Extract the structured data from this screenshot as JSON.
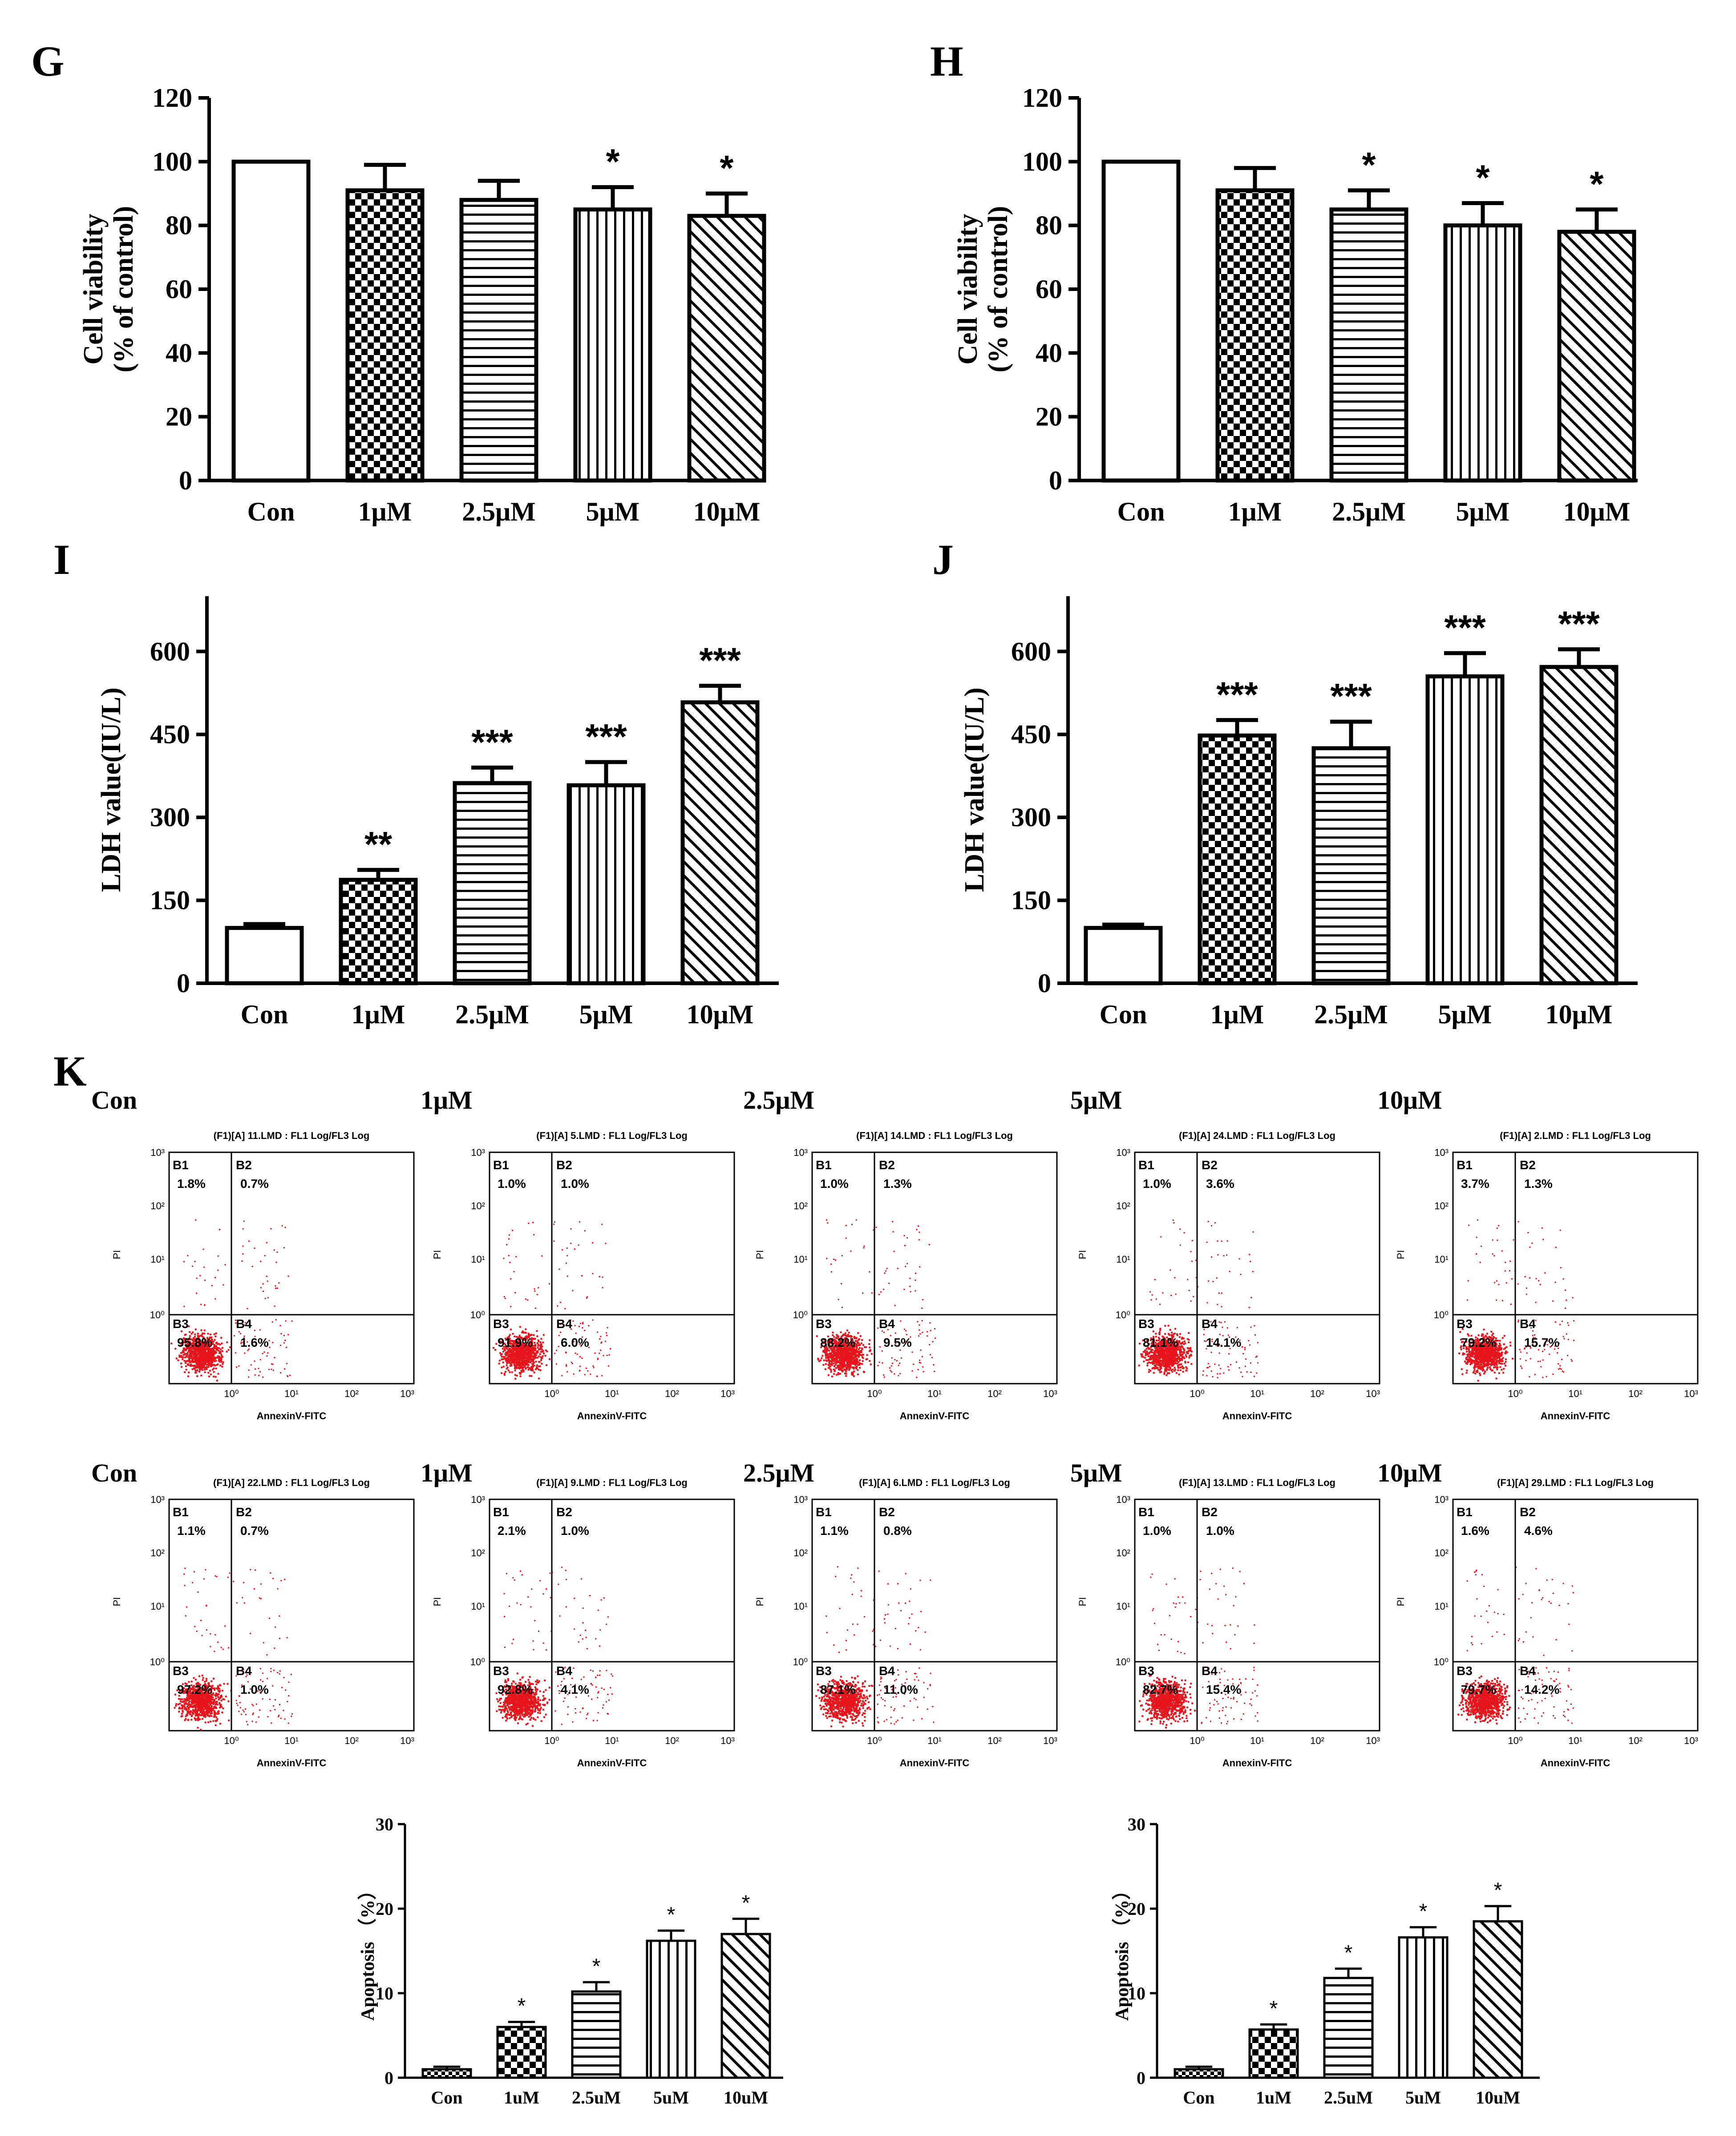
{
  "figure": {
    "panels": {
      "G": "G",
      "H": "H",
      "I": "I",
      "J": "J",
      "K": "K"
    }
  },
  "chart_data": [
    {
      "id": "G",
      "type": "bar",
      "letter": "G",
      "categories": [
        "Con",
        "1μM",
        "2.5μM",
        "5μM",
        "10μM"
      ],
      "values": [
        100,
        91,
        88,
        85,
        83
      ],
      "errors": [
        0,
        8,
        6,
        7,
        7
      ],
      "significance": [
        "",
        "",
        "",
        "*",
        "*"
      ],
      "ylabel_line1": "Cell viability",
      "ylabel_line2": "(% of control)",
      "ylim": [
        0,
        120
      ],
      "yticks": [
        "0",
        "20",
        "40",
        "60",
        "80",
        "100",
        "120"
      ],
      "patterns": [
        "white",
        "check",
        "hlines",
        "vlines",
        "diag"
      ]
    },
    {
      "id": "H",
      "type": "bar",
      "letter": "H",
      "categories": [
        "Con",
        "1μM",
        "2.5μM",
        "5μM",
        "10μM"
      ],
      "values": [
        100,
        91,
        85,
        80,
        78
      ],
      "errors": [
        0,
        7,
        6,
        7,
        7
      ],
      "significance": [
        "",
        "",
        "*",
        "*",
        "*"
      ],
      "ylabel_line1": "Cell viability",
      "ylabel_line2": "(% of control)",
      "ylim": [
        0,
        120
      ],
      "yticks": [
        "0",
        "20",
        "40",
        "60",
        "80",
        "100",
        "120"
      ],
      "patterns": [
        "white",
        "check",
        "hlines",
        "vlines",
        "diag"
      ]
    },
    {
      "id": "I",
      "type": "bar",
      "letter": "I",
      "categories": [
        "Con",
        "1μM",
        "2.5μM",
        "5μM",
        "10μM"
      ],
      "values": [
        100,
        187,
        362,
        358,
        508
      ],
      "errors": [
        7,
        18,
        28,
        42,
        30
      ],
      "significance": [
        "",
        "**",
        "***",
        "***",
        "***"
      ],
      "ylabel_line1": "LDH value(IU/L)",
      "ylabel_line2": "",
      "ylim": [
        0,
        700
      ],
      "yticks": [
        "0",
        "150",
        "300",
        "450",
        "600"
      ],
      "patterns": [
        "white",
        "check",
        "hlines",
        "vlines",
        "diag"
      ]
    },
    {
      "id": "J",
      "type": "bar",
      "letter": "J",
      "categories": [
        "Con",
        "1μM",
        "2.5μM",
        "5μM",
        "10μM"
      ],
      "values": [
        100,
        448,
        425,
        555,
        572
      ],
      "errors": [
        6,
        28,
        48,
        42,
        32
      ],
      "significance": [
        "",
        "***",
        "***",
        "***",
        "***"
      ],
      "ylabel_line1": "LDH value(IU/L)",
      "ylabel_line2": "",
      "ylim": [
        0,
        700
      ],
      "yticks": [
        "0",
        "150",
        "300",
        "450",
        "600"
      ],
      "patterns": [
        "white",
        "check",
        "hlines",
        "vlines",
        "diag"
      ]
    },
    {
      "id": "K1",
      "type": "bar",
      "categories": [
        "Con",
        "1uM",
        "2.5uM",
        "5uM",
        "10uM"
      ],
      "values": [
        1.0,
        6.0,
        10.2,
        16.2,
        17.0
      ],
      "errors": [
        0.3,
        0.6,
        1.1,
        1.2,
        1.8
      ],
      "significance": [
        "",
        "*",
        "*",
        "*",
        "*"
      ],
      "ylabel": "Apoptosis （%）",
      "ylim": [
        0,
        30
      ],
      "yticks": [
        "0",
        "10",
        "20",
        "30"
      ],
      "patterns": [
        "smallcheck",
        "check",
        "hlines",
        "vlines",
        "diag"
      ]
    },
    {
      "id": "K2",
      "type": "bar",
      "categories": [
        "Con",
        "1uM",
        "2.5uM",
        "5uM",
        "10uM"
      ],
      "values": [
        1.0,
        5.7,
        11.8,
        16.6,
        18.5
      ],
      "errors": [
        0.3,
        0.6,
        1.1,
        1.2,
        1.8
      ],
      "significance": [
        "",
        "*",
        "*",
        "*",
        "*"
      ],
      "ylabel": "Apoptosis （%）",
      "ylim": [
        0,
        30
      ],
      "yticks": [
        "0",
        "10",
        "20",
        "30"
      ],
      "patterns": [
        "smallcheck",
        "check",
        "hlines",
        "vlines",
        "diag"
      ]
    }
  ],
  "flow": {
    "xlabel": "AnnexinV-FITC",
    "ylabel": "PI",
    "quad_labels": [
      "B1",
      "B2",
      "B3",
      "B4"
    ],
    "decade_ticks": [
      "10⁰",
      "10¹",
      "10²",
      "10³"
    ],
    "x_tick_labels": [
      "10⁰",
      "10¹",
      "10²",
      "10³"
    ],
    "rows": [
      [
        {
          "condition": "Con",
          "title": "(F1)[A] 11.LMD : FL1 Log/FL3 Log",
          "b1": "1.8%",
          "b2": "0.7%",
          "b3": "95.8%",
          "b4": "1.6%"
        },
        {
          "condition": "1μM",
          "title": "(F1)[A] 5.LMD : FL1 Log/FL3 Log",
          "b1": "1.0%",
          "b2": "1.0%",
          "b3": "91.9%",
          "b4": "6.0%"
        },
        {
          "condition": "2.5μM",
          "title": "(F1)[A] 14.LMD : FL1 Log/FL3 Log",
          "b1": "1.0%",
          "b2": "1.3%",
          "b3": "88.2%",
          "b4": "9.5%"
        },
        {
          "condition": "5μM",
          "title": "(F1)[A] 24.LMD : FL1 Log/FL3 Log",
          "b1": "1.0%",
          "b2": "3.6%",
          "b3": "81.1%",
          "b4": "14.1%"
        },
        {
          "condition": "10μM",
          "title": "(F1)[A] 2.LMD : FL1 Log/FL3 Log",
          "b1": "3.7%",
          "b2": "1.3%",
          "b3": "79.2%",
          "b4": "15.7%"
        }
      ],
      [
        {
          "condition": "Con",
          "title": "(F1)[A] 22.LMD : FL1 Log/FL3 Log",
          "b1": "1.1%",
          "b2": "0.7%",
          "b3": "97.2%",
          "b4": "1.0%"
        },
        {
          "condition": "1μM",
          "title": "(F1)[A] 9.LMD : FL1 Log/FL3 Log",
          "b1": "2.1%",
          "b2": "1.0%",
          "b3": "92.8%",
          "b4": "4.1%"
        },
        {
          "condition": "2.5μM",
          "title": "(F1)[A] 6.LMD : FL1 Log/FL3 Log",
          "b1": "1.1%",
          "b2": "0.8%",
          "b3": "87.1%",
          "b4": "11.0%"
        },
        {
          "condition": "5μM",
          "title": "(F1)[A] 13.LMD : FL1 Log/FL3 Log",
          "b1": "1.0%",
          "b2": "1.0%",
          "b3": "82.7%",
          "b4": "15.4%"
        },
        {
          "condition": "10μM",
          "title": "(F1)[A] 29.LMD : FL1 Log/FL3 Log",
          "b1": "1.6%",
          "b2": "4.6%",
          "b3": "79.7%",
          "b4": "14.2%"
        }
      ]
    ]
  },
  "colors": {
    "ink": "#000000",
    "dots": "#e8141c",
    "background": "#ffffff"
  }
}
